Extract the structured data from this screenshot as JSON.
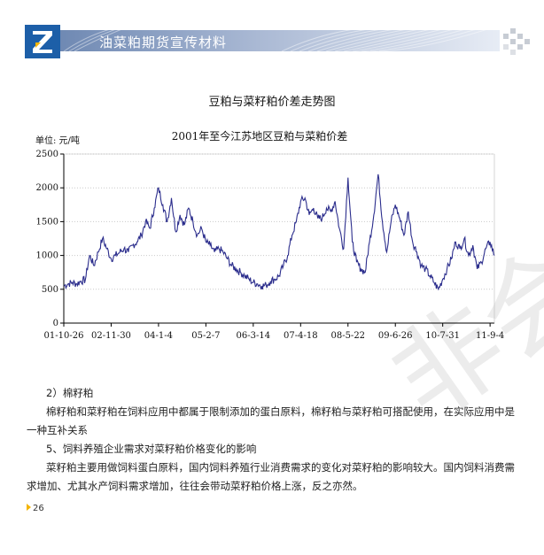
{
  "header": {
    "title": "油菜粕期货宣传材料",
    "colors": {
      "logo_blue": "#1d5fa8",
      "band": "#8ea3c6"
    }
  },
  "figure": {
    "caption": "豆粕与菜籽粕价差走势图"
  },
  "chart_data": {
    "type": "line",
    "title": "2001年至今江苏地区豆粕与菜粕价差",
    "ylabel": "单位:  元/吨",
    "xlabel": "",
    "ylim": [
      0,
      2500
    ],
    "yticks": [
      0,
      500,
      1000,
      1500,
      2000,
      2500
    ],
    "xlim": [
      0,
      100
    ],
    "xticks": [
      {
        "x": 0,
        "label": "01-10-26"
      },
      {
        "x": 11,
        "label": "02-11-30"
      },
      {
        "x": 22,
        "label": "04-1-4"
      },
      {
        "x": 33,
        "label": "05-2-7"
      },
      {
        "x": 44,
        "label": "06-3-14"
      },
      {
        "x": 55,
        "label": "07-4-18"
      },
      {
        "x": 66,
        "label": "08-5-22"
      },
      {
        "x": 77,
        "label": "09-6-26"
      },
      {
        "x": 88,
        "label": "10-7-31"
      },
      {
        "x": 99,
        "label": "11-9-4"
      }
    ],
    "grid": true,
    "line_color": "#2b2d8c",
    "x": [
      0,
      1,
      2,
      3,
      4,
      5,
      6,
      7,
      8,
      9,
      10,
      11,
      12,
      13,
      14,
      15,
      16,
      17,
      18,
      19,
      20,
      21,
      22,
      23,
      24,
      25,
      26,
      27,
      28,
      29,
      30,
      31,
      32,
      33,
      34,
      35,
      36,
      37,
      38,
      39,
      40,
      41,
      42,
      43,
      44,
      45,
      46,
      47,
      48,
      49,
      50,
      51,
      52,
      53,
      54,
      55,
      56,
      57,
      58,
      59,
      60,
      61,
      62,
      63,
      64,
      65,
      66,
      67,
      68,
      69,
      70,
      71,
      72,
      73,
      74,
      75,
      76,
      77,
      78,
      79,
      80,
      81,
      82,
      83,
      84,
      85,
      86,
      87,
      88,
      89,
      90,
      91,
      92,
      93,
      94,
      95,
      96,
      97,
      98,
      99,
      100
    ],
    "values": [
      550,
      580,
      600,
      580,
      620,
      640,
      1000,
      850,
      1050,
      1250,
      1100,
      950,
      1000,
      1050,
      1100,
      1050,
      1150,
      1200,
      1300,
      1500,
      1400,
      1700,
      2000,
      1750,
      1500,
      1850,
      1350,
      1600,
      1450,
      1700,
      1500,
      1300,
      1400,
      1200,
      1150,
      1050,
      1100,
      1050,
      950,
      850,
      800,
      750,
      700,
      650,
      600,
      580,
      550,
      560,
      620,
      650,
      700,
      850,
      1000,
      1300,
      1500,
      1800,
      1850,
      1600,
      1700,
      1550,
      1550,
      1700,
      1650,
      1800,
      1400,
      1100,
      2150,
      1200,
      900,
      800,
      750,
      1200,
      1600,
      2200,
      1500,
      1050,
      1500,
      1750,
      1550,
      1300,
      1650,
      1200,
      1050,
      850,
      800,
      700,
      600,
      500,
      650,
      800,
      950,
      1200,
      1100,
      1250,
      1000,
      1150,
      800,
      900,
      1100,
      1200,
      1000
    ]
  },
  "body": {
    "heading1": "2）棉籽粕",
    "para1": "棉籽粕和菜籽粕在饲料应用中都属于限制添加的蛋白原料，棉籽粕与菜籽粕可搭配使用，在实际应用中是一种互补关系",
    "heading2": "5、饲料养殖企业需求对菜籽粕价格变化的影响",
    "para2": "菜籽粕主要用做饲料蛋白原料，国内饲料养殖行业消费需求的变化对菜籽粕的影响较大。国内饲料消费需求增加、尤其水产饲料需求增加，往往会带动菜籽粕价格上涨，反之亦然。"
  },
  "footer": {
    "page_number": "26"
  },
  "watermark": {
    "text": "非会"
  }
}
